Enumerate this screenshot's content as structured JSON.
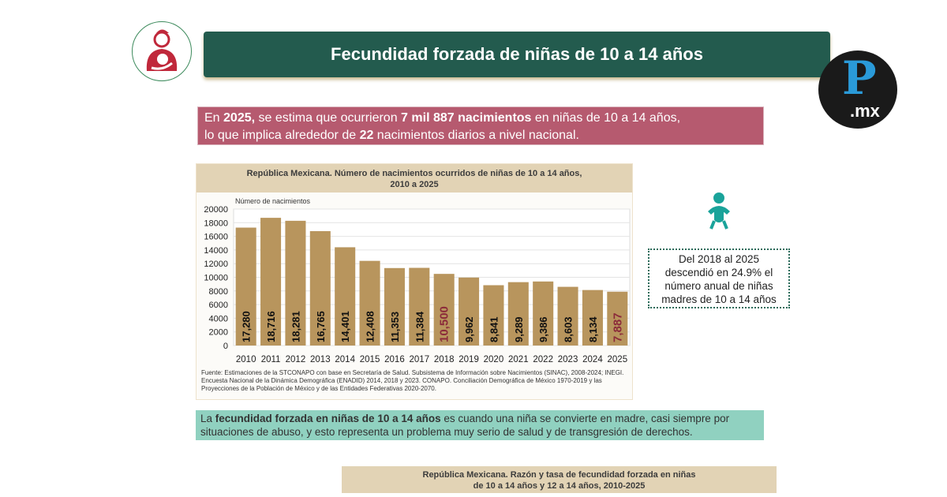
{
  "header": {
    "title": "Fecundidad forzada de niñas de 10 a 14 años"
  },
  "logo": {
    "text_main": "P",
    "text_suffix": ".mx"
  },
  "stat": {
    "p1": "En ",
    "b1": "2025,",
    "p2": " se estima que ocurrieron ",
    "b2": "7 mil 887 nacimientos",
    "p3": " en niñas de 10 a 14 años,",
    "p4": "lo que implica alrededor de ",
    "b3": "22",
    "p5": " nacimientos diarios a nivel nacional."
  },
  "chart_data": {
    "type": "bar",
    "title": "República Mexicana. Número de nacimientos ocurridos de niñas de 10 a 14 años,",
    "title2": "2010 a 2025",
    "ylabel": "Número de nacimientos",
    "xlabel": "",
    "ylim": [
      0,
      20000
    ],
    "yticks": [
      0,
      2000,
      4000,
      6000,
      8000,
      10000,
      12000,
      14000,
      16000,
      18000,
      20000
    ],
    "categories": [
      "2010",
      "2011",
      "2012",
      "2013",
      "2014",
      "2015",
      "2016",
      "2017",
      "2018",
      "2019",
      "2020",
      "2021",
      "2022",
      "2023",
      "2024",
      "2025"
    ],
    "values": [
      17280,
      18716,
      18281,
      16765,
      14401,
      12408,
      11353,
      11384,
      10500,
      9962,
      8841,
      9289,
      9386,
      8603,
      8134,
      7887
    ],
    "labels": [
      "17,280",
      "18,716",
      "18,281",
      "16,765",
      "14,401",
      "12,408",
      "11,353",
      "11,384",
      "10,500",
      "9,962",
      "8,841",
      "9,289",
      "9,386",
      "8,603",
      "8,134",
      "7,887"
    ],
    "highlight": [
      "2018",
      "2025"
    ],
    "bar_color": "#b8955d",
    "highlight_label_color": "#8b2a3a",
    "grid": true,
    "source": "Fuente: Estimaciones de la STCONAPO con base en Secretaría de Salud. Subsistema de Información sobre Nacimientos (SINAC), 2008-2024; INEGI. Encuesta Nacional de la Dinámica Demográfica (ENADID) 2014, 2018 y 2023. CONAPO. Conciliación Demográfica de México 1970-2019 y las Proyecciones de la Población de México y de las Entidades Federativas 2020-2070."
  },
  "note": {
    "l1": "Del 2018 al 2025",
    "l2": "descendió en 24.9% el",
    "l3": "número anual de niñas",
    "l4": "madres de 10 a 14 años"
  },
  "definition": {
    "p1": "La ",
    "b1": "fecundidad forzada en niñas de 10 a 14 años",
    "p2": " es cuando una niña se convierte en madre, casi siempre por situaciones de abuso, y esto representa un problema muy serio de salud y de transgresión de derechos."
  },
  "bottom": {
    "l1": "República Mexicana. Razón y tasa de fecundidad forzada en niñas",
    "l2": "de 10 a 14 años y 12 a 14 años, 2010-2025"
  }
}
